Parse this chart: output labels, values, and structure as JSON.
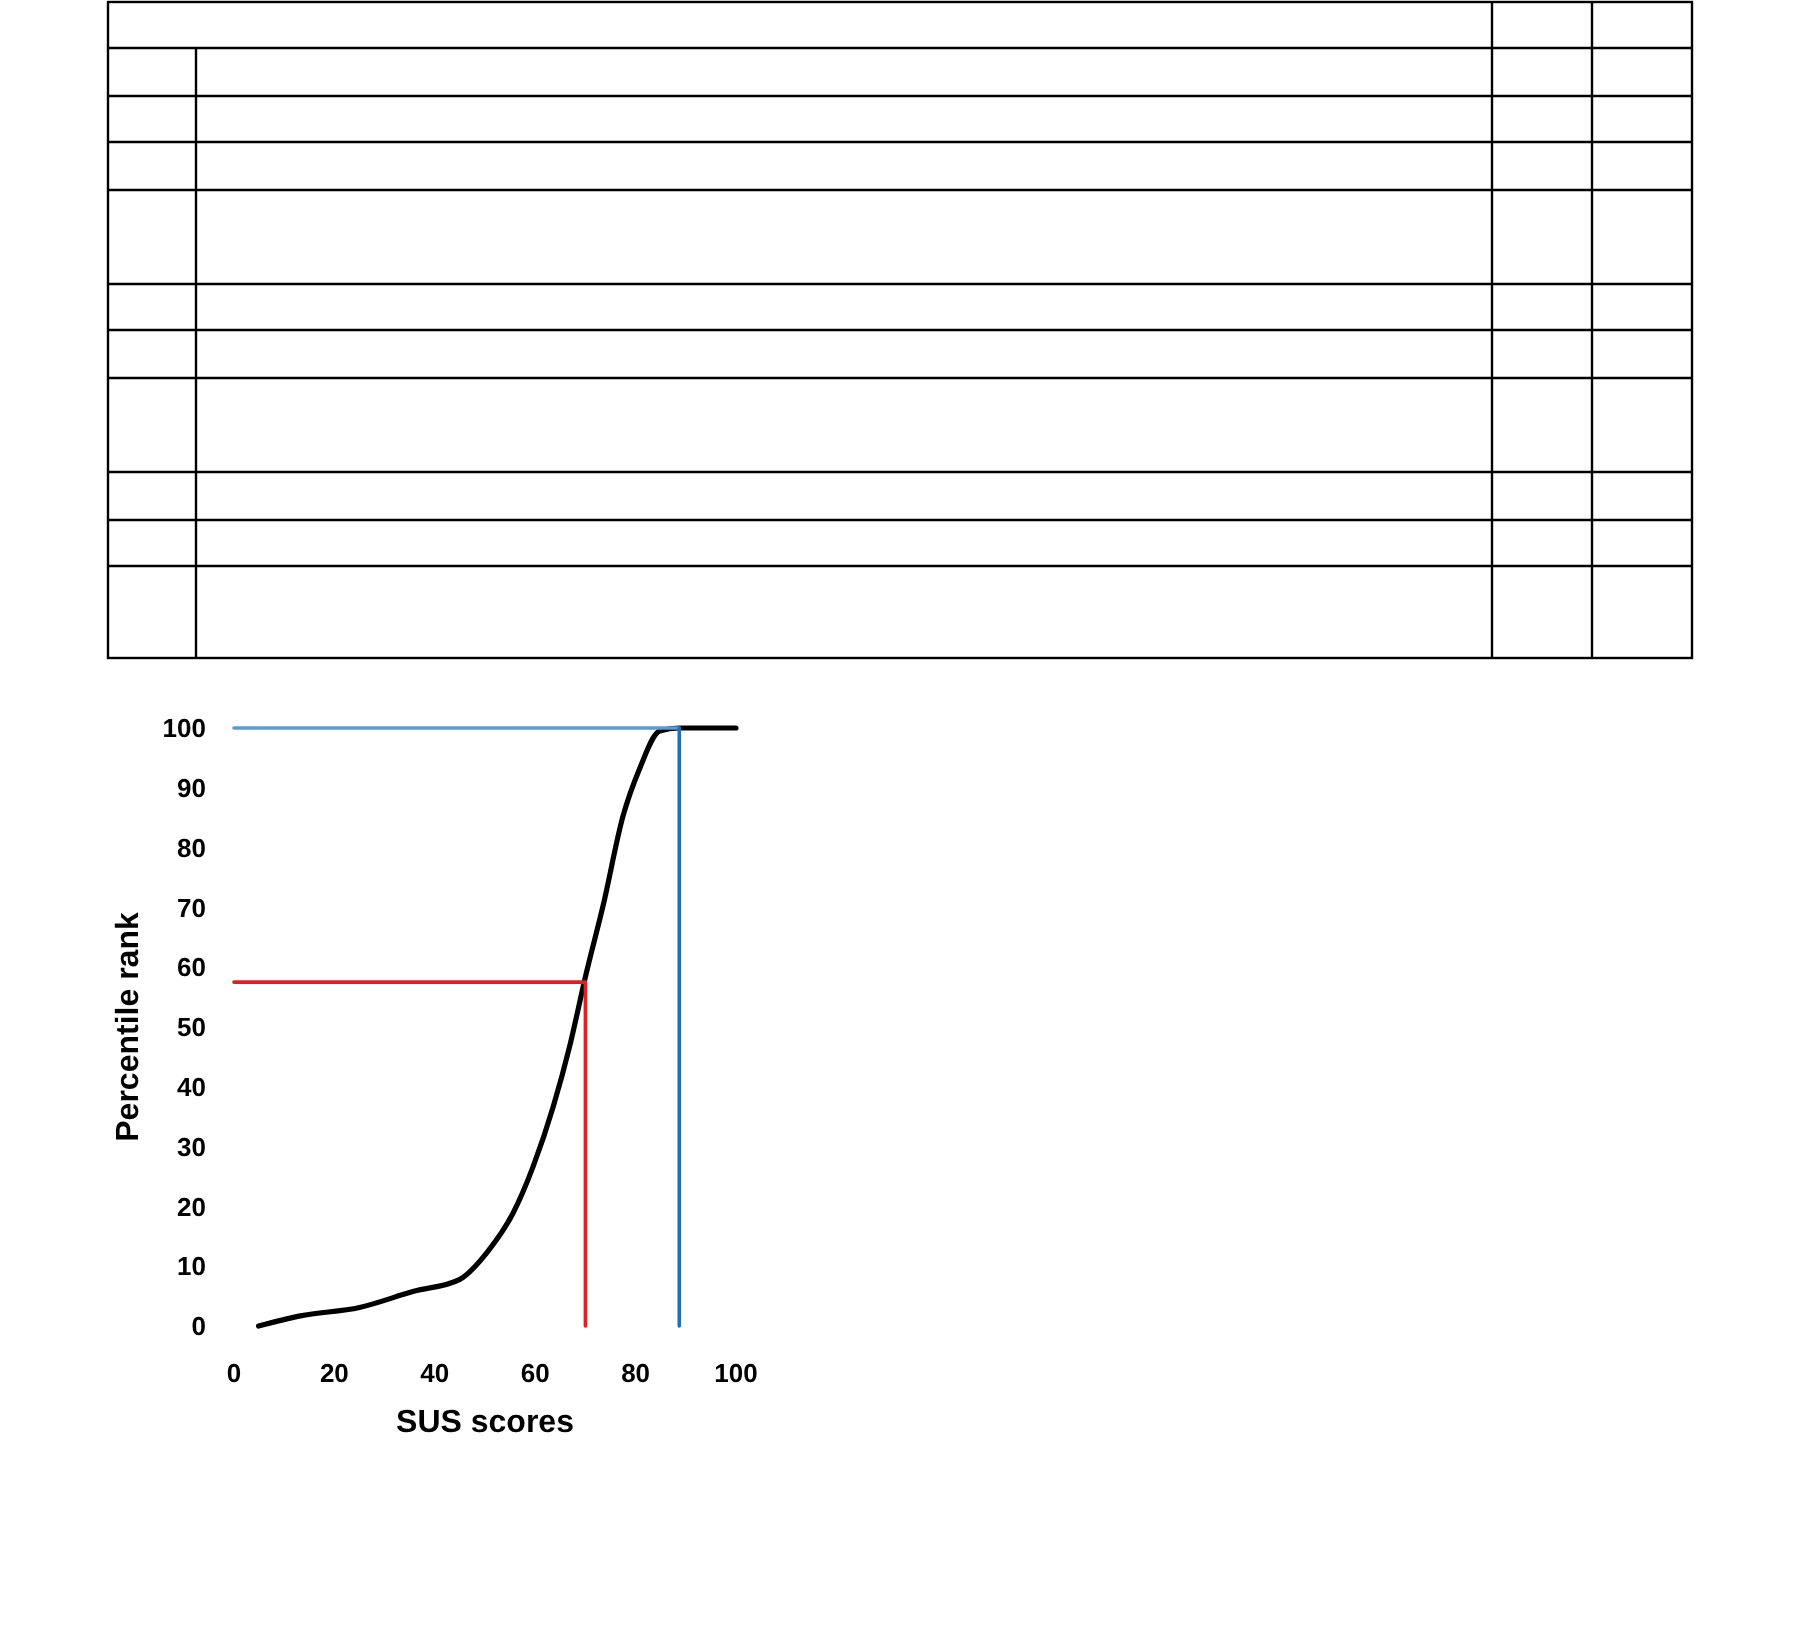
{
  "chart_data": {
    "type": "line",
    "xlabel": "SUS scores",
    "ylabel": "Percentile rank",
    "xlim": [
      0,
      100
    ],
    "ylim": [
      0,
      100
    ],
    "xticks": [
      0,
      20,
      40,
      60,
      80,
      100
    ],
    "yticks": [
      0,
      10,
      20,
      30,
      40,
      50,
      60,
      70,
      80,
      90,
      100
    ],
    "series": [
      {
        "color": "#000000",
        "x": [
          4.9,
          13.2,
          25,
          35.8,
          45,
          50.3,
          55.6,
          59.6,
          63.6,
          66.9,
          70.2,
          73.5,
          77.5,
          80.8,
          84.8,
          88.7,
          92.7,
          100
        ],
        "values": [
          0,
          1.7,
          3.1,
          5.8,
          7.8,
          12.2,
          18.9,
          26.7,
          36.7,
          46.9,
          59.1,
          70.2,
          85.3,
          93.2,
          99.5,
          100,
          100,
          100
        ]
      },
      {
        "color": "#e02020",
        "x": [
          0,
          70,
          70
        ],
        "values": [
          57.5,
          57.5,
          0
        ]
      },
      {
        "color": "#5b9bd5",
        "x": [
          0,
          88.7
        ],
        "values": [
          100,
          100
        ]
      },
      {
        "color": "#1f6fb4",
        "x": [
          88.7,
          88.7
        ],
        "values": [
          100,
          0
        ]
      }
    ]
  }
}
